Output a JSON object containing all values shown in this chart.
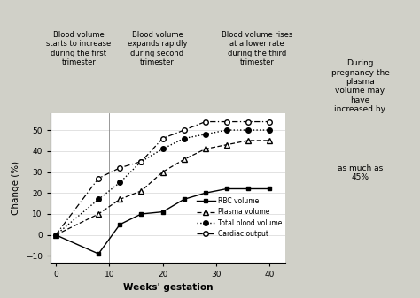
{
  "rbc_x": [
    0,
    8,
    12,
    16,
    20,
    24,
    28,
    32,
    36,
    40
  ],
  "rbc_y": [
    0,
    -9,
    5,
    10,
    11,
    17,
    20,
    22,
    22,
    22
  ],
  "plasma_x": [
    0,
    8,
    12,
    16,
    20,
    24,
    28,
    32,
    36,
    40
  ],
  "plasma_y": [
    0,
    10,
    17,
    21,
    30,
    36,
    41,
    43,
    45,
    45
  ],
  "total_x": [
    0,
    8,
    12,
    16,
    20,
    24,
    28,
    32,
    36,
    40
  ],
  "total_y": [
    0,
    17,
    25,
    35,
    41,
    46,
    48,
    50,
    50,
    50
  ],
  "cardiac_x": [
    0,
    8,
    12,
    16,
    20,
    24,
    28,
    32,
    36,
    40
  ],
  "cardiac_y": [
    0,
    27,
    32,
    35,
    46,
    50,
    54,
    54,
    54,
    54
  ],
  "ylabel": "Change (%)",
  "xlabel": "Weeks' gestation",
  "ylim": [
    -13,
    58
  ],
  "xlim": [
    -1,
    43
  ],
  "yticks": [
    -10,
    0,
    10,
    20,
    30,
    40,
    50
  ],
  "xticks": [
    0,
    10,
    20,
    30,
    40
  ],
  "trimester1_label": "Blood volume\nstarts to increase\nduring the first\ntrimester",
  "trimester2_label": "Blood volume\nexpands rapidly\nduring second\ntrimester",
  "trimester3_label": "Blood volume rises\nat a lower rate\nduring the third\ntrimester",
  "annotation_top": "During\npregnancy the\nplasma\nvolume may\nhave\nincreased by",
  "annotation_bottom": "as much as\n45%",
  "annotation_color": "#f5c9a0",
  "box_bg": "#e8e8e0",
  "fig_bg": "#d0d0c8",
  "plot_bg": "#ffffff",
  "trimester_dividers": [
    10,
    28
  ]
}
